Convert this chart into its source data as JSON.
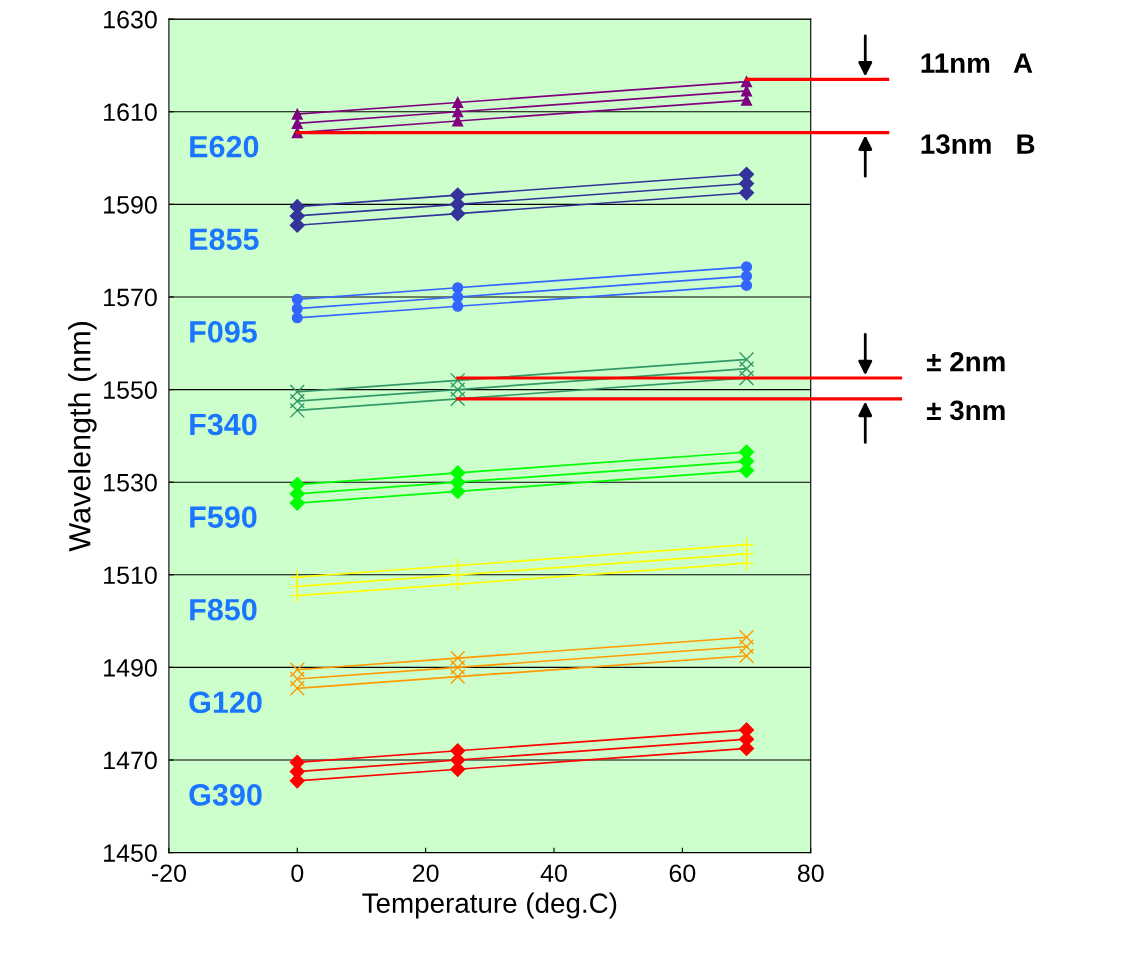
{
  "chart_data": {
    "type": "line",
    "xlabel": "Temperature (deg.C)",
    "ylabel": "Wavelength (nm)",
    "x": [
      0,
      25,
      70
    ],
    "xlim": [
      -20,
      80
    ],
    "xticks": [
      -20,
      0,
      20,
      40,
      60,
      80
    ],
    "ylim": [
      1450,
      1630
    ],
    "yticks": [
      1450,
      1470,
      1490,
      1510,
      1530,
      1550,
      1570,
      1590,
      1610,
      1630
    ],
    "grid": "y",
    "legend": false,
    "series": [
      {
        "color": "#800080",
        "marker": "triangle",
        "values": [
          1609.5,
          1612,
          1616.5
        ]
      },
      {
        "color": "#800080",
        "marker": "triangle",
        "values": [
          1607.5,
          1610,
          1614.5
        ]
      },
      {
        "name": "E620",
        "color": "#800080",
        "marker": "triangle",
        "values": [
          1605.5,
          1608,
          1612.5
        ]
      },
      {
        "color": "#333399",
        "marker": "diamond",
        "values": [
          1589.5,
          1592,
          1596.5
        ]
      },
      {
        "color": "#333399",
        "marker": "diamond",
        "values": [
          1587.5,
          1590,
          1594.5
        ]
      },
      {
        "name": "E855",
        "color": "#333399",
        "marker": "diamond",
        "values": [
          1585.5,
          1588,
          1592.5
        ]
      },
      {
        "color": "#3366ff",
        "marker": "circle",
        "values": [
          1569.5,
          1572,
          1576.5
        ]
      },
      {
        "color": "#3366ff",
        "marker": "circle",
        "values": [
          1567.5,
          1570,
          1574.5
        ]
      },
      {
        "name": "F095",
        "color": "#3366ff",
        "marker": "circle",
        "values": [
          1565.5,
          1568,
          1572.5
        ]
      },
      {
        "color": "#339966",
        "marker": "cross",
        "values": [
          1549.5,
          1552,
          1556.5
        ]
      },
      {
        "color": "#339966",
        "marker": "cross",
        "values": [
          1547.5,
          1550,
          1554.5
        ]
      },
      {
        "name": "F340",
        "color": "#339966",
        "marker": "cross",
        "values": [
          1545.5,
          1548,
          1552.5
        ]
      },
      {
        "color": "#00ff00",
        "marker": "diamond",
        "values": [
          1529.5,
          1532,
          1536.5
        ]
      },
      {
        "color": "#00ff00",
        "marker": "diamond",
        "values": [
          1527.5,
          1530,
          1534.5
        ]
      },
      {
        "name": "F590",
        "color": "#00ff00",
        "marker": "diamond",
        "values": [
          1525.5,
          1528,
          1532.5
        ]
      },
      {
        "color": "#ffff00",
        "marker": "plus",
        "values": [
          1509.5,
          1512,
          1516.5
        ]
      },
      {
        "color": "#ffff00",
        "marker": "plus",
        "values": [
          1507.5,
          1510,
          1514.5
        ]
      },
      {
        "name": "F850",
        "color": "#ffff00",
        "marker": "plus",
        "values": [
          1505.5,
          1508,
          1512.5
        ]
      },
      {
        "color": "#ff9900",
        "marker": "cross",
        "values": [
          1489.5,
          1492,
          1496.5
        ]
      },
      {
        "color": "#ff9900",
        "marker": "cross",
        "values": [
          1487.5,
          1490,
          1494.5
        ]
      },
      {
        "name": "G120",
        "color": "#ff9900",
        "marker": "cross",
        "values": [
          1485.5,
          1488,
          1492.5
        ]
      },
      {
        "color": "#ff0000",
        "marker": "diamond",
        "values": [
          1469.5,
          1472,
          1476.5
        ]
      },
      {
        "color": "#ff0000",
        "marker": "diamond",
        "values": [
          1467.5,
          1470,
          1474.5
        ]
      },
      {
        "name": "G390",
        "color": "#ff0000",
        "marker": "diamond",
        "values": [
          1465.5,
          1468,
          1472.5
        ]
      }
    ],
    "annotations": [
      {
        "text": "11nm   A",
        "x": 70,
        "y": 1617
      },
      {
        "text": "13nm   B",
        "x": 0,
        "y": 1605.5
      },
      {
        "text": "± 2nm",
        "x": 25,
        "y": 1552.5
      },
      {
        "text": "± 3nm",
        "x": 25,
        "y": 1548
      }
    ]
  }
}
